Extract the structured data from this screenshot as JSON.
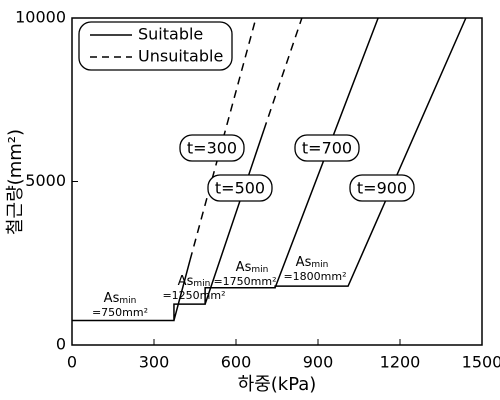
{
  "chart_data": {
    "type": "line",
    "xlabel": "하중(kPa)",
    "ylabel": "철근량(mm²)",
    "xlim": [
      0,
      1500
    ],
    "xticks": [
      0,
      300,
      600,
      900,
      1200,
      1500
    ],
    "ylim": [
      0,
      10000
    ],
    "yticks": [
      0,
      5000,
      10000
    ],
    "grid": false,
    "legend": "upper left",
    "series": [
      {
        "name": "Suitable",
        "color": "#000000",
        "dash": false,
        "x": [
          0,
          373,
          373,
          487,
          487,
          743,
          743,
          1010,
          1441,
          null,
          373,
          432,
          null,
          487,
          702,
          null,
          743,
          1120
        ],
        "y": [
          750,
          750,
          1250,
          1250,
          1750,
          1750,
          1800,
          1800,
          10000,
          null,
          750,
          2600,
          null,
          1250,
          6575,
          null,
          1750,
          10000
        ]
      },
      {
        "name": "Unsuitable",
        "color": "#000000",
        "dash": true,
        "x": [
          432,
          673,
          null,
          702,
          841
        ],
        "y": [
          2600,
          10000,
          null,
          6575,
          10000
        ]
      }
    ],
    "curve_labels": [
      "t=300",
      "t=500",
      "t=700",
      "t=900"
    ],
    "asmin_labels": [
      {
        "prefix": "As",
        "sub": "min",
        "value": "=750mm²"
      },
      {
        "prefix": "As",
        "sub": "min",
        "value": "=1250mm²"
      },
      {
        "prefix": "As",
        "sub": "min",
        "value": "=1750mm²"
      },
      {
        "prefix": "As",
        "sub": "min",
        "value": "=1800mm²"
      }
    ]
  }
}
